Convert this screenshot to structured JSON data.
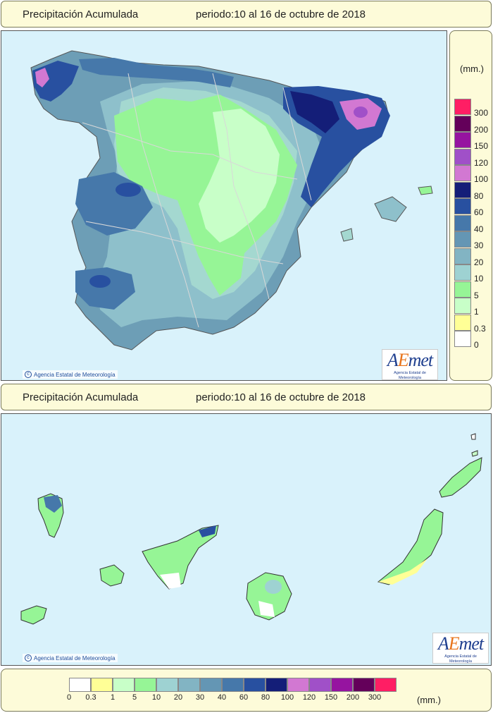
{
  "top_title": {
    "label": "Precipitación Acumulada",
    "period": "periodo:10 al 16 de octubre de 2018"
  },
  "bottom_title": {
    "label": "Precipitación Acumulada",
    "period": "periodo:10 al 16 de octubre de 2018"
  },
  "copyright": "Agencia Estatal de Meteorología",
  "logo": {
    "text_a": "A",
    "text_e": "E",
    "text_rest": "met",
    "subtitle": "Agencia Estatal de Meteorología"
  },
  "legend": {
    "unit": "(mm.)",
    "classes": [
      {
        "label": "0",
        "color": "#ffffff"
      },
      {
        "label": "0.3",
        "color": "#ffff96"
      },
      {
        "label": "1",
        "color": "#c8ffc8"
      },
      {
        "label": "5",
        "color": "#96f596"
      },
      {
        "label": "10",
        "color": "#9ed2d2"
      },
      {
        "label": "20",
        "color": "#82b4c3"
      },
      {
        "label": "30",
        "color": "#6496b4"
      },
      {
        "label": "40",
        "color": "#4678aa"
      },
      {
        "label": "60",
        "color": "#2850a0"
      },
      {
        "label": "80",
        "color": "#141e78"
      },
      {
        "label": "100",
        "color": "#d278d2"
      },
      {
        "label": "120",
        "color": "#a050c8"
      },
      {
        "label": "150",
        "color": "#9614a0"
      },
      {
        "label": "200",
        "color": "#64005a"
      },
      {
        "label": "300",
        "color": "#ff1e64"
      }
    ]
  }
}
